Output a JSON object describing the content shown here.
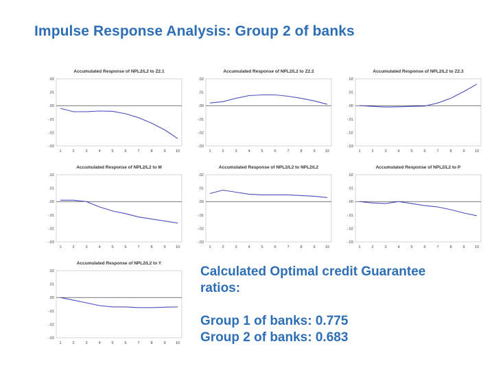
{
  "slide": {
    "title": "Impulse Response Analysis:  Group 2 of banks"
  },
  "results": {
    "heading_line1": "Calculated Optimal credit Guarantee",
    "heading_line2": "ratios:",
    "group1": "Group 1 of banks: 0.775",
    "group2": "Group 2 of banks: 0.683"
  },
  "colors": {
    "title": "#2e6eb5",
    "line": "#4b4bbd"
  },
  "chart_data": [
    {
      "type": "line",
      "title": "Accumulated Response of NPL2/L2 to Z2.1",
      "x": [
        1,
        2,
        3,
        4,
        5,
        6,
        7,
        8,
        9,
        10
      ],
      "values": [
        -0.002,
        -0.0045,
        -0.0045,
        -0.004,
        -0.0042,
        -0.006,
        -0.009,
        -0.013,
        -0.018,
        -0.0245
      ],
      "xticks": [
        "1",
        "2",
        "3",
        "4",
        "5",
        "6",
        "7",
        "8",
        "9",
        "10"
      ],
      "yticks": [
        ".02",
        ".01",
        ".00",
        "-.01",
        "-.02",
        "-.03"
      ],
      "ylim": [
        -0.03,
        0.02
      ]
    },
    {
      "type": "line",
      "title": "Accumulated Response of NPL2/L2 to Z2.2",
      "x": [
        1,
        2,
        3,
        4,
        5,
        6,
        7,
        8,
        9,
        10
      ],
      "values": [
        0.002,
        0.003,
        0.0055,
        0.0075,
        0.008,
        0.008,
        0.007,
        0.0055,
        0.0035,
        0.001
      ],
      "xticks": [
        "1",
        "2",
        "3",
        "4",
        "5",
        "6",
        "7",
        "8",
        "9",
        "10"
      ],
      "yticks": [
        ".02",
        ".01",
        ".00",
        "-.01",
        "-.02",
        "-.03"
      ],
      "ylim": [
        -0.03,
        0.02
      ]
    },
    {
      "type": "line",
      "title": "Accumulated Response of NPL2/L2 to Z2.3",
      "x": [
        1,
        2,
        3,
        4,
        5,
        6,
        7,
        8,
        9,
        10
      ],
      "values": [
        0.0,
        -0.0005,
        -0.001,
        -0.0008,
        -0.0005,
        -0.0003,
        0.002,
        0.0055,
        0.0105,
        0.016
      ],
      "xticks": [
        "1",
        "2",
        "3",
        "4",
        "5",
        "6",
        "7",
        "8",
        "9",
        "10"
      ],
      "yticks": [
        ".02",
        ".01",
        ".00",
        "-.01",
        "-.02",
        "-.03"
      ],
      "ylim": [
        -0.03,
        0.02
      ]
    },
    {
      "type": "line",
      "title": "Accumulated Response of NPL2/L2 to M",
      "x": [
        1,
        2,
        3,
        4,
        5,
        6,
        7,
        8,
        9,
        10
      ],
      "values": [
        0.001,
        0.001,
        0.0,
        -0.004,
        -0.007,
        -0.009,
        -0.0115,
        -0.013,
        -0.0145,
        -0.016
      ],
      "xticks": [
        "1",
        "2",
        "3",
        "4",
        "5",
        "6",
        "7",
        "8",
        "9",
        "10"
      ],
      "yticks": [
        ".02",
        ".01",
        ".00",
        "-.01",
        "-.02",
        "-.03"
      ],
      "ylim": [
        -0.03,
        0.02
      ]
    },
    {
      "type": "line",
      "title": "Accumulated Response of NPL2/L2 to NPL2/L2",
      "x": [
        1,
        2,
        3,
        4,
        5,
        6,
        7,
        8,
        9,
        10
      ],
      "values": [
        0.006,
        0.0085,
        0.007,
        0.0055,
        0.005,
        0.005,
        0.005,
        0.0045,
        0.004,
        0.003
      ],
      "xticks": [
        "1",
        "2",
        "3",
        "4",
        "5",
        "6",
        "7",
        "8",
        "9",
        "10"
      ],
      "yticks": [
        ".02",
        ".01",
        ".00",
        "-.01",
        "-.02",
        "-.03"
      ],
      "ylim": [
        -0.03,
        0.02
      ]
    },
    {
      "type": "line",
      "title": "Accumulated Response of NPL2/L2 to P",
      "x": [
        1,
        2,
        3,
        4,
        5,
        6,
        7,
        8,
        9,
        10
      ],
      "values": [
        0.0,
        -0.001,
        -0.0015,
        0.0,
        -0.0015,
        -0.003,
        -0.004,
        -0.006,
        -0.0085,
        -0.0105
      ],
      "xticks": [
        "1",
        "2",
        "3",
        "4",
        "5",
        "6",
        "7",
        "8",
        "9",
        "10"
      ],
      "yticks": [
        ".02",
        ".01",
        ".00",
        "-.01",
        "-.02",
        "-.03"
      ],
      "ylim": [
        -0.03,
        0.02
      ]
    },
    {
      "type": "line",
      "title": "Accumulated Response of NPL2/L2 to Y",
      "x": [
        1,
        2,
        3,
        4,
        5,
        6,
        7,
        8,
        9,
        10
      ],
      "values": [
        0.0,
        -0.002,
        -0.004,
        -0.006,
        -0.007,
        -0.007,
        -0.0075,
        -0.0075,
        -0.0072,
        -0.007
      ],
      "xticks": [
        "1",
        "2",
        "3",
        "4",
        "5",
        "6",
        "7",
        "8",
        "9",
        "10"
      ],
      "yticks": [
        ".02",
        ".01",
        ".00",
        "-.01",
        "-.02",
        "-.03"
      ],
      "ylim": [
        -0.03,
        0.02
      ]
    }
  ]
}
